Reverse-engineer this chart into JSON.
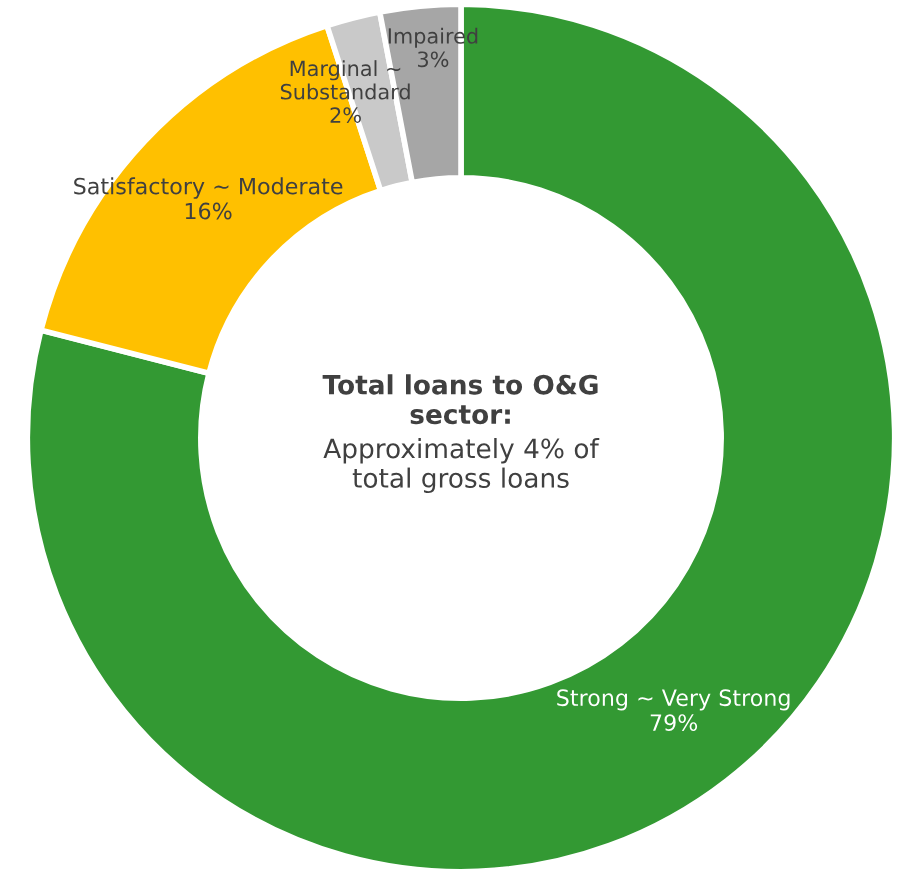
{
  "chart_data": {
    "type": "donut",
    "categories": [
      "Strong ~ Very Strong",
      "Satisfactory ~ Moderate",
      "Marginal ~\nSubstandard",
      "Impaired"
    ],
    "values": [
      79,
      16,
      2,
      3
    ],
    "value_labels": [
      "79%",
      "16%",
      "2%",
      "3%"
    ],
    "colors": [
      "#339933",
      "#ffc000",
      "#c9c9c9",
      "#a6a6a6"
    ],
    "annotations": [
      "Total loans to O&G\nsector:",
      "Approximately 4% of\ntotal gross loans"
    ]
  }
}
